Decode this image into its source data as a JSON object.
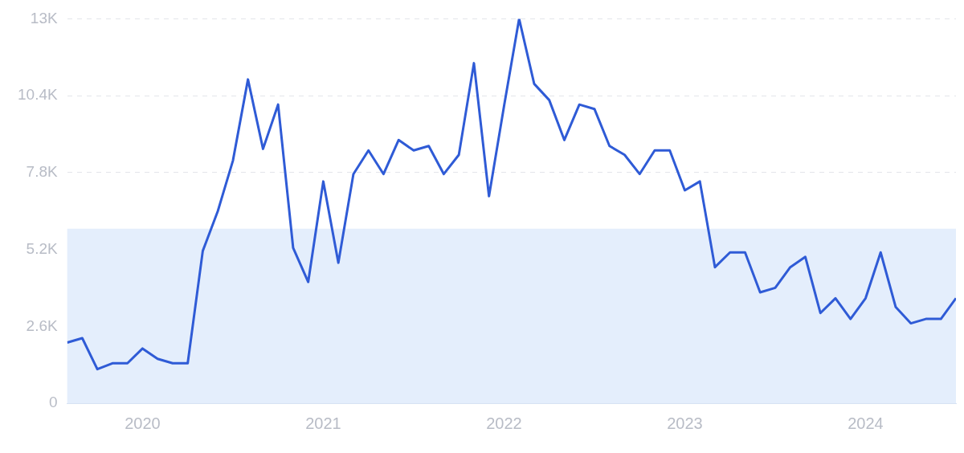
{
  "chart_data": {
    "type": "line",
    "x": [
      "2019-08",
      "2019-09",
      "2019-10",
      "2019-11",
      "2019-12",
      "2020-01",
      "2020-02",
      "2020-03",
      "2020-04",
      "2020-05",
      "2020-06",
      "2020-07",
      "2020-08",
      "2020-09",
      "2020-10",
      "2020-11",
      "2020-12",
      "2021-01",
      "2021-02",
      "2021-03",
      "2021-04",
      "2021-05",
      "2021-06",
      "2021-07",
      "2021-08",
      "2021-09",
      "2021-10",
      "2021-11",
      "2021-12",
      "2022-01",
      "2022-02",
      "2022-03",
      "2022-04",
      "2022-05",
      "2022-06",
      "2022-07",
      "2022-08",
      "2022-09",
      "2022-10",
      "2022-11",
      "2022-12",
      "2023-01",
      "2023-02",
      "2023-03",
      "2023-04",
      "2023-05",
      "2023-06",
      "2023-07",
      "2023-08",
      "2023-09",
      "2023-10",
      "2023-11",
      "2023-12",
      "2024-01",
      "2024-02",
      "2024-03",
      "2024-04",
      "2024-05",
      "2024-06",
      "2024-07"
    ],
    "series": [
      {
        "color": "#2f5bd6",
        "values": [
          2050,
          2200,
          1150,
          1350,
          1350,
          1850,
          1500,
          1350,
          1350,
          5150,
          6500,
          8200,
          10950,
          8600,
          10100,
          5250,
          4100,
          7500,
          4750,
          7750,
          8550,
          7750,
          8900,
          8550,
          8700,
          7750,
          8400,
          11500,
          7000,
          10050,
          13000,
          10800,
          10250,
          8900,
          10100,
          9950,
          8700,
          8400,
          7750,
          8550,
          8550,
          7200,
          7500,
          4600,
          5100,
          5100,
          3750,
          3900,
          4600,
          4950,
          3050,
          3550,
          2850,
          3550,
          5100,
          3250,
          2700,
          2850,
          2850,
          3550
        ]
      }
    ],
    "xlim": [
      "2019-08",
      "2024-07"
    ],
    "xticks": [
      "2020",
      "2021",
      "2022",
      "2023",
      "2024"
    ],
    "ylim": [
      0,
      13000
    ],
    "yticks": [
      {
        "value": 0,
        "label": "0"
      },
      {
        "value": 2600,
        "label": "2.6K"
      },
      {
        "value": 5200,
        "label": "5.2K"
      },
      {
        "value": 7800,
        "label": "7.8K"
      },
      {
        "value": 10400,
        "label": "10.4K"
      },
      {
        "value": 13000,
        "label": "13K"
      }
    ],
    "bands": [
      {
        "axis": "y",
        "from": 0,
        "to": 5900,
        "color": "#e4eefc"
      }
    ],
    "grid": "y",
    "marker": "none",
    "legend": false
  }
}
